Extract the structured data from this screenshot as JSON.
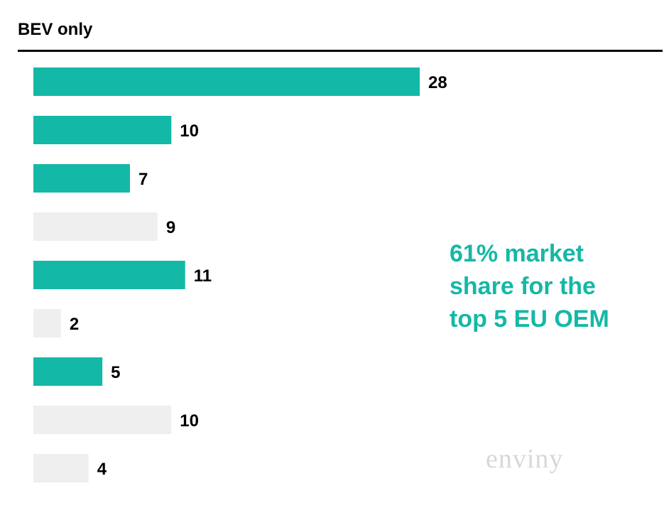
{
  "chart_data": {
    "type": "bar",
    "orientation": "horizontal",
    "title": "BEV only",
    "values": [
      28,
      10,
      7,
      9,
      11,
      2,
      5,
      10,
      4
    ],
    "highlighted": [
      true,
      true,
      true,
      false,
      true,
      false,
      true,
      false,
      false
    ],
    "xlim": [
      0,
      28
    ],
    "grid": false,
    "data_labels": true,
    "colors": {
      "highlight": "#14b8a6",
      "other": "#efefef",
      "label": "#000000"
    },
    "annotation": [
      "61% market",
      "share for the",
      "top 5 EU OEM"
    ]
  },
  "logo": "enviny"
}
